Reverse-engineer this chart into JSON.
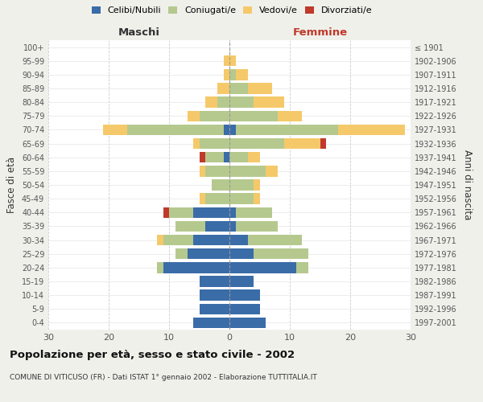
{
  "age_groups": [
    "0-4",
    "5-9",
    "10-14",
    "15-19",
    "20-24",
    "25-29",
    "30-34",
    "35-39",
    "40-44",
    "45-49",
    "50-54",
    "55-59",
    "60-64",
    "65-69",
    "70-74",
    "75-79",
    "80-84",
    "85-89",
    "90-94",
    "95-99",
    "100+"
  ],
  "birth_years": [
    "1997-2001",
    "1992-1996",
    "1987-1991",
    "1982-1986",
    "1977-1981",
    "1972-1976",
    "1967-1971",
    "1962-1966",
    "1957-1961",
    "1952-1956",
    "1947-1951",
    "1942-1946",
    "1937-1941",
    "1932-1936",
    "1927-1931",
    "1922-1926",
    "1917-1921",
    "1912-1916",
    "1907-1911",
    "1902-1906",
    "≤ 1901"
  ],
  "colors": {
    "celibi": "#3a6ca8",
    "coniugati": "#b5c98e",
    "vedovi": "#f5c96a",
    "divorziati": "#c0392b"
  },
  "maschi": {
    "celibi": [
      6,
      5,
      5,
      5,
      11,
      7,
      6,
      4,
      6,
      0,
      0,
      0,
      1,
      0,
      1,
      0,
      0,
      0,
      0,
      0,
      0
    ],
    "coniugati": [
      0,
      0,
      0,
      0,
      1,
      2,
      5,
      5,
      4,
      4,
      3,
      4,
      3,
      5,
      16,
      5,
      2,
      0,
      0,
      0,
      0
    ],
    "vedovi": [
      0,
      0,
      0,
      0,
      0,
      0,
      1,
      0,
      0,
      1,
      0,
      1,
      0,
      1,
      4,
      2,
      2,
      2,
      1,
      1,
      0
    ],
    "divorziati": [
      0,
      0,
      0,
      0,
      0,
      0,
      0,
      0,
      1,
      0,
      0,
      0,
      1,
      0,
      0,
      0,
      0,
      0,
      0,
      0,
      0
    ]
  },
  "femmine": {
    "celibi": [
      6,
      5,
      5,
      4,
      11,
      4,
      3,
      1,
      1,
      0,
      0,
      0,
      0,
      0,
      1,
      0,
      0,
      0,
      0,
      0,
      0
    ],
    "coniugati": [
      0,
      0,
      0,
      0,
      2,
      9,
      9,
      7,
      6,
      4,
      4,
      6,
      3,
      9,
      17,
      8,
      4,
      3,
      1,
      0,
      0
    ],
    "vedovi": [
      0,
      0,
      0,
      0,
      0,
      0,
      0,
      0,
      0,
      1,
      1,
      2,
      2,
      6,
      11,
      4,
      5,
      4,
      2,
      1,
      0
    ],
    "divorziati": [
      0,
      0,
      0,
      0,
      0,
      0,
      0,
      0,
      0,
      0,
      0,
      0,
      0,
      1,
      0,
      0,
      0,
      0,
      0,
      0,
      0
    ]
  },
  "xlim": 30,
  "title": "Popolazione per età, sesso e stato civile - 2002",
  "subtitle": "COMUNE DI VITICUSO (FR) - Dati ISTAT 1° gennaio 2002 - Elaborazione TUTTITALIA.IT",
  "ylabel_left": "Fasce di età",
  "ylabel_right": "Anni di nascita",
  "xlabel_left": "Maschi",
  "xlabel_right": "Femmine",
  "legend_labels": [
    "Celibi/Nubili",
    "Coniugati/e",
    "Vedovi/e",
    "Divorziati/e"
  ],
  "background_color": "#f0f0eb",
  "plot_bg": "#ffffff"
}
